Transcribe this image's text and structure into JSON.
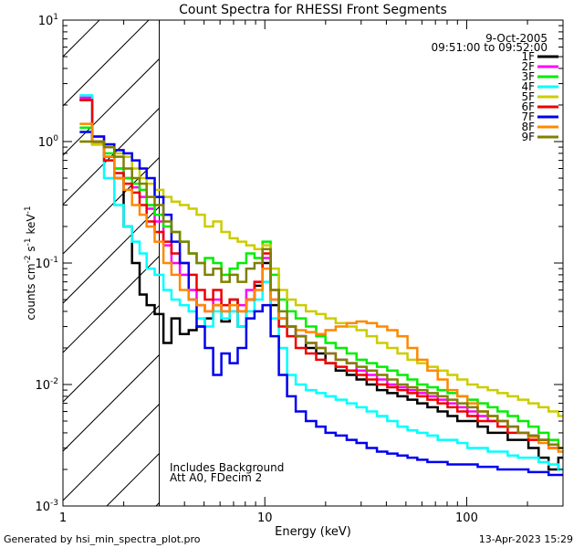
{
  "chart_data": {
    "type": "line",
    "title": "Count Spectra for RHESSI Front Segments",
    "xlabel": "Energy (keV)",
    "ylabel_parts": {
      "a": "counts cm",
      "b": "-2",
      "c": " s",
      "d": "-1",
      "e": " keV",
      "f": "-1"
    },
    "xscale": "log",
    "yscale": "log",
    "xlim": [
      1,
      300
    ],
    "ylim": [
      0.001,
      10
    ],
    "x_ticks": [
      {
        "v": 1,
        "label": "1"
      },
      {
        "v": 10,
        "label": "10"
      },
      {
        "v": 100,
        "label": "100"
      }
    ],
    "y_ticks": [
      {
        "v": 0.001,
        "base": "10",
        "exp": "-3"
      },
      {
        "v": 0.01,
        "base": "10",
        "exp": "-2"
      },
      {
        "v": 0.1,
        "base": "10",
        "exp": "-1"
      },
      {
        "v": 1,
        "base": "10",
        "exp": "0"
      },
      {
        "v": 10,
        "base": "10",
        "exp": "1"
      }
    ],
    "hatched_region": [
      1,
      3
    ],
    "annotations": {
      "date": "9-Oct-2005",
      "time_range": "09:51:00 to 09:52:00",
      "note1": "Includes Background",
      "note2": "Att A0, FDecim 2"
    },
    "x": [
      1.3,
      1.5,
      1.7,
      1.9,
      2.1,
      2.3,
      2.5,
      2.7,
      3.0,
      3.3,
      3.6,
      4.0,
      4.4,
      4.8,
      5.3,
      5.8,
      6.4,
      7.0,
      7.7,
      8.5,
      9.3,
      10.2,
      11.2,
      12.3,
      13.5,
      15,
      17,
      19,
      21,
      24,
      27,
      30,
      34,
      38,
      43,
      48,
      54,
      60,
      68,
      76,
      85,
      95,
      107,
      120,
      135,
      150,
      170,
      190,
      215,
      240,
      270,
      300
    ],
    "series": [
      {
        "name": "1F",
        "color": "#000000",
        "values": [
          2.2,
          0.95,
          0.75,
          0.5,
          0.2,
          0.1,
          0.055,
          0.045,
          0.038,
          0.022,
          0.035,
          0.026,
          0.028,
          0.03,
          0.035,
          0.045,
          0.033,
          0.05,
          0.03,
          0.05,
          0.065,
          0.1,
          0.045,
          0.035,
          0.03,
          0.025,
          0.02,
          0.018,
          0.015,
          0.013,
          0.012,
          0.011,
          0.01,
          0.009,
          0.0085,
          0.008,
          0.0075,
          0.007,
          0.0065,
          0.006,
          0.0055,
          0.005,
          0.005,
          0.0045,
          0.004,
          0.004,
          0.0035,
          0.0035,
          0.003,
          0.0025,
          0.002,
          0.0025
        ]
      },
      {
        "name": "2F",
        "color": "#ff00ff",
        "values": [
          2.3,
          1.1,
          0.9,
          0.6,
          0.5,
          0.42,
          0.35,
          0.28,
          0.22,
          0.14,
          0.1,
          0.08,
          0.06,
          0.045,
          0.04,
          0.05,
          0.04,
          0.04,
          0.045,
          0.06,
          0.07,
          0.11,
          0.05,
          0.035,
          0.03,
          0.025,
          0.022,
          0.02,
          0.018,
          0.016,
          0.015,
          0.013,
          0.012,
          0.011,
          0.01,
          0.0095,
          0.009,
          0.0085,
          0.008,
          0.0075,
          0.007,
          0.0065,
          0.006,
          0.0055,
          0.005,
          0.005,
          0.0045,
          0.004,
          0.0038,
          0.0035,
          0.003,
          0.003
        ]
      },
      {
        "name": "3F",
        "color": "#00ee00",
        "values": [
          1.3,
          1.0,
          0.8,
          0.6,
          0.5,
          0.45,
          0.4,
          0.3,
          0.25,
          0.2,
          0.18,
          0.15,
          0.12,
          0.1,
          0.11,
          0.1,
          0.08,
          0.09,
          0.1,
          0.12,
          0.11,
          0.15,
          0.08,
          0.05,
          0.04,
          0.035,
          0.03,
          0.025,
          0.022,
          0.02,
          0.018,
          0.016,
          0.015,
          0.014,
          0.013,
          0.012,
          0.011,
          0.01,
          0.0095,
          0.009,
          0.0085,
          0.008,
          0.0075,
          0.007,
          0.0065,
          0.006,
          0.0055,
          0.005,
          0.0045,
          0.004,
          0.0035,
          0.003
        ]
      },
      {
        "name": "4F",
        "color": "#00ffff",
        "values": [
          2.4,
          1.0,
          0.5,
          0.3,
          0.2,
          0.15,
          0.12,
          0.09,
          0.08,
          0.06,
          0.05,
          0.045,
          0.04,
          0.035,
          0.03,
          0.04,
          0.035,
          0.04,
          0.03,
          0.04,
          0.05,
          0.07,
          0.035,
          0.02,
          0.012,
          0.01,
          0.009,
          0.0085,
          0.008,
          0.0075,
          0.007,
          0.0065,
          0.006,
          0.0055,
          0.005,
          0.0045,
          0.0042,
          0.004,
          0.0038,
          0.0035,
          0.0035,
          0.0033,
          0.003,
          0.003,
          0.0028,
          0.0028,
          0.0026,
          0.0025,
          0.0025,
          0.0023,
          0.0022,
          0.002
        ]
      },
      {
        "name": "5F",
        "color": "#cccc00",
        "values": [
          1.0,
          0.95,
          0.9,
          0.8,
          0.75,
          0.6,
          0.5,
          0.45,
          0.4,
          0.35,
          0.32,
          0.3,
          0.28,
          0.25,
          0.2,
          0.22,
          0.18,
          0.16,
          0.15,
          0.14,
          0.13,
          0.14,
          0.09,
          0.06,
          0.05,
          0.045,
          0.04,
          0.038,
          0.035,
          0.032,
          0.03,
          0.028,
          0.025,
          0.022,
          0.02,
          0.018,
          0.016,
          0.015,
          0.014,
          0.013,
          0.012,
          0.011,
          0.01,
          0.0095,
          0.009,
          0.0085,
          0.008,
          0.0075,
          0.007,
          0.0065,
          0.006,
          0.0055
        ]
      },
      {
        "name": "6F",
        "color": "#ee0000",
        "values": [
          2.2,
          1.0,
          0.7,
          0.55,
          0.45,
          0.38,
          0.3,
          0.22,
          0.18,
          0.15,
          0.12,
          0.1,
          0.08,
          0.06,
          0.05,
          0.06,
          0.045,
          0.05,
          0.04,
          0.05,
          0.07,
          0.12,
          0.06,
          0.03,
          0.025,
          0.02,
          0.018,
          0.016,
          0.015,
          0.014,
          0.013,
          0.012,
          0.011,
          0.01,
          0.0095,
          0.009,
          0.0085,
          0.008,
          0.0075,
          0.007,
          0.0065,
          0.006,
          0.0055,
          0.005,
          0.005,
          0.0045,
          0.004,
          0.004,
          0.0035,
          0.0035,
          0.003,
          0.003
        ]
      },
      {
        "name": "7F",
        "color": "#0000ee",
        "values": [
          1.2,
          1.1,
          0.95,
          0.85,
          0.8,
          0.7,
          0.6,
          0.5,
          0.35,
          0.25,
          0.15,
          0.1,
          0.05,
          0.03,
          0.02,
          0.012,
          0.018,
          0.015,
          0.02,
          0.035,
          0.04,
          0.045,
          0.025,
          0.012,
          0.008,
          0.006,
          0.005,
          0.0045,
          0.004,
          0.0038,
          0.0035,
          0.0033,
          0.003,
          0.0028,
          0.0027,
          0.0026,
          0.0025,
          0.0024,
          0.0023,
          0.0023,
          0.0022,
          0.0022,
          0.0022,
          0.0021,
          0.0021,
          0.002,
          0.002,
          0.002,
          0.0019,
          0.0019,
          0.0018,
          0.0018
        ]
      },
      {
        "name": "8F",
        "color": "#ff8800",
        "values": [
          1.4,
          1.0,
          0.75,
          0.5,
          0.4,
          0.3,
          0.25,
          0.2,
          0.15,
          0.1,
          0.08,
          0.06,
          0.05,
          0.045,
          0.04,
          0.045,
          0.04,
          0.045,
          0.04,
          0.05,
          0.06,
          0.09,
          0.05,
          0.035,
          0.03,
          0.028,
          0.027,
          0.026,
          0.028,
          0.03,
          0.032,
          0.033,
          0.032,
          0.03,
          0.028,
          0.025,
          0.02,
          0.016,
          0.013,
          0.011,
          0.009,
          0.008,
          0.007,
          0.006,
          0.0055,
          0.005,
          0.0045,
          0.004,
          0.0037,
          0.0033,
          0.003,
          0.0028
        ]
      },
      {
        "name": "9F",
        "color": "#808000",
        "values": [
          1.0,
          1.0,
          0.9,
          0.75,
          0.6,
          0.5,
          0.45,
          0.35,
          0.3,
          0.22,
          0.18,
          0.15,
          0.12,
          0.1,
          0.08,
          0.09,
          0.07,
          0.08,
          0.07,
          0.09,
          0.1,
          0.13,
          0.06,
          0.04,
          0.03,
          0.025,
          0.022,
          0.02,
          0.018,
          0.016,
          0.015,
          0.014,
          0.013,
          0.012,
          0.011,
          0.01,
          0.0095,
          0.009,
          0.0085,
          0.008,
          0.0075,
          0.007,
          0.0065,
          0.006,
          0.0055,
          0.005,
          0.0045,
          0.004,
          0.0038,
          0.0035,
          0.0032,
          0.003
        ]
      }
    ]
  },
  "footer": {
    "generated": "Generated by hsi_min_spectra_plot.pro",
    "timestamp": "13-Apr-2023 15:29"
  }
}
